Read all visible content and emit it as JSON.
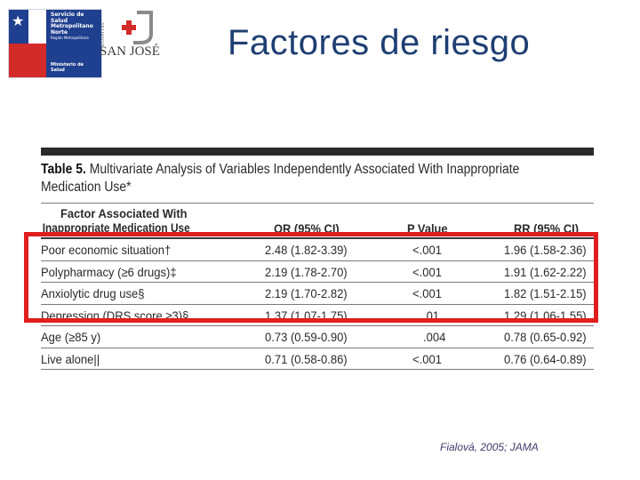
{
  "logos": {
    "ssmn": {
      "line1": "Servicio de",
      "line2": "Salud",
      "line3": "Metropolitano",
      "line4": "Norte",
      "region": "Región Metropolitana",
      "ministry1": "Ministerio de",
      "ministry2": "Salud",
      "colors": {
        "blue": "#1f3f8f",
        "red": "#d32a2a"
      }
    },
    "hsj": {
      "hospital": "HOSPITAL",
      "name": "SAN JOSÉ",
      "colors": {
        "cross": "#d32a2a",
        "mark": "#8a8a8a"
      }
    }
  },
  "slide": {
    "title": "Factores de riesgo",
    "source": "Fialová, 2005; JAMA",
    "title_color": "#1f3f73",
    "highlight_color": "#e01e1e"
  },
  "table": {
    "caption_label": "Table 5.",
    "caption_text": "Multivariate Analysis of Variables Independently Associated With Inappropriate",
    "caption_text2": "Medication Use*",
    "headers": {
      "factor_line1": "Factor Associated With",
      "factor_line2": "Inappropriate Medication Use",
      "or": "OR (95% CI)",
      "p": "P Value",
      "rr": "RR (95% CI)"
    },
    "rows": [
      {
        "factor": "Poor economic situation†",
        "or": "2.48 (1.82-3.39)",
        "p": "<.001",
        "rr": "1.96 (1.58-2.36)"
      },
      {
        "factor": "Polypharmacy (≥6 drugs)‡",
        "or": "2.19 (1.78-2.70)",
        "p": "<.001",
        "rr": "1.91 (1.62-2.22)"
      },
      {
        "factor": "Anxiolytic drug use§",
        "or": "2.19 (1.70-2.82)",
        "p": "<.001",
        "rr": "1.82 (1.51-2.15)"
      },
      {
        "factor": "Depression (DRS score ≥3)§",
        "or": "1.37 (1.07-1.75)",
        "p": ".01",
        "rr": "1.29 (1.06-1.55)"
      },
      {
        "factor": "Age (≥85 y)",
        "or": "0.73 (0.59-0.90)",
        "p": ".004",
        "rr": "0.78 (0.65-0.92)"
      },
      {
        "factor": "Live alone||",
        "or": "0.71 (0.58-0.86)",
        "p": "<.001",
        "rr": "0.76 (0.64-0.89)"
      }
    ]
  }
}
